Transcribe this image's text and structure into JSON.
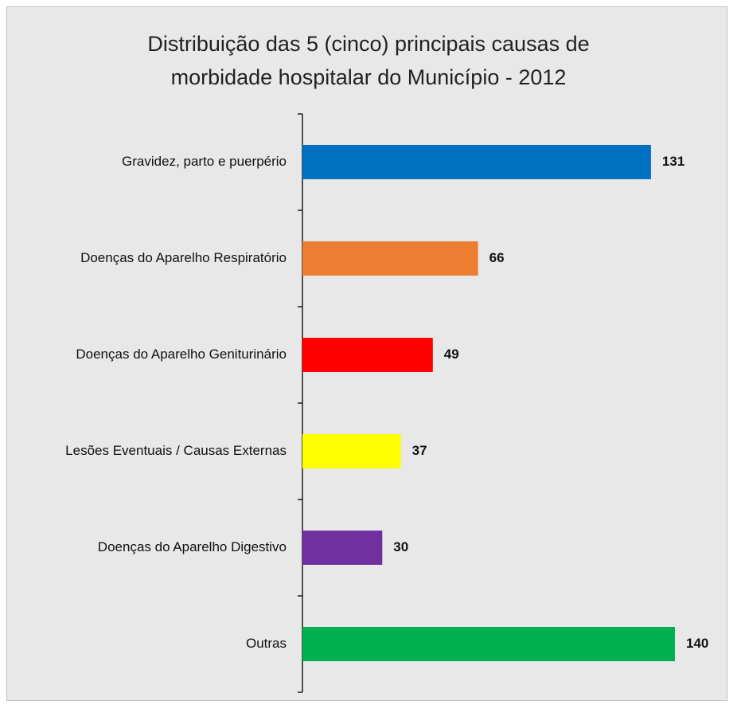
{
  "chart_data": {
    "type": "barh",
    "title": "Distribuição das 5 (cinco) principais causas de morbidade hospitalar do Município - 2012",
    "categories": [
      "Gravidez, parto e puerpério",
      "Doenças do Aparelho Respiratório",
      "Doenças do Aparelho Geniturinário",
      "Lesões Eventuais / Causas Externas",
      "Doenças do Aparelho Digestivo",
      "Outras"
    ],
    "values": [
      131,
      66,
      49,
      37,
      30,
      140
    ],
    "colors": [
      "#0070c0",
      "#ed7d31",
      "#ff0000",
      "#ffff00",
      "#7030a0",
      "#00b050"
    ]
  }
}
